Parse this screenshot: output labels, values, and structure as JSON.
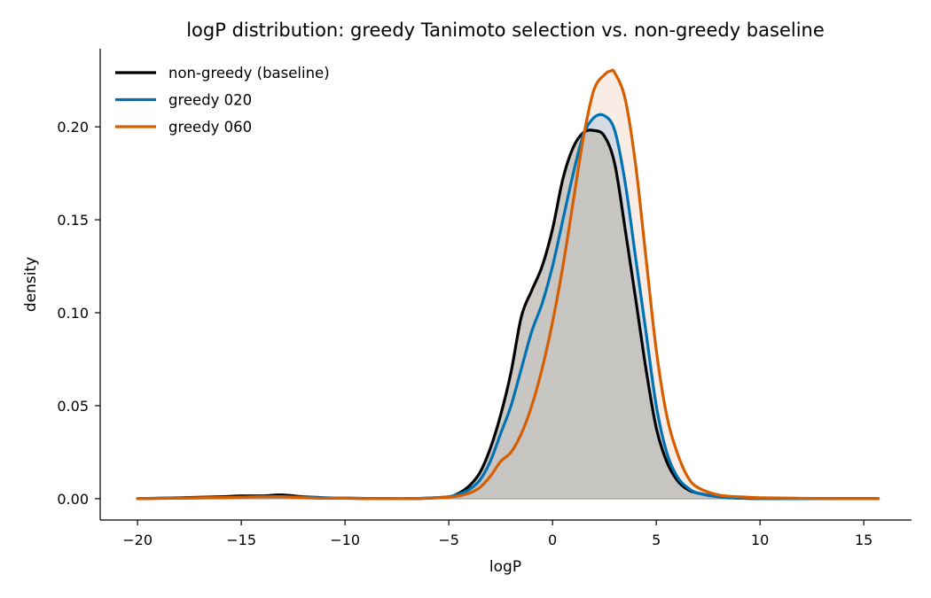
{
  "chart_data": {
    "type": "area",
    "title": "logP distribution: greedy Tanimoto selection vs. non-greedy baseline",
    "xlabel": "logP",
    "ylabel": "density",
    "xlim": [
      -21.8,
      17.3
    ],
    "ylim": [
      -0.0115,
      0.242
    ],
    "xticks": [
      -20,
      -15,
      -10,
      -5,
      0,
      5,
      10,
      15
    ],
    "xtick_labels": [
      "−20",
      "−15",
      "−10",
      "−5",
      "0",
      "5",
      "10",
      "15"
    ],
    "yticks": [
      0.0,
      0.05,
      0.1,
      0.15,
      0.2
    ],
    "ytick_labels": [
      "0.00",
      "0.05",
      "0.10",
      "0.15",
      "0.20"
    ],
    "grid": false,
    "legend_position": "top-left",
    "series": [
      {
        "name": "non-greedy (baseline)",
        "color": "#000000",
        "fill": "#c4c1bc",
        "x": [
          -20,
          -18,
          -16,
          -15,
          -14,
          -13,
          -12,
          -11,
          -10,
          -9,
          -8,
          -7,
          -6,
          -5,
          -4.5,
          -4,
          -3.5,
          -3,
          -2.5,
          -2,
          -1.5,
          -1,
          -0.5,
          0,
          0.5,
          1,
          1.5,
          2,
          2.5,
          3,
          3.5,
          4,
          4.5,
          5,
          5.5,
          6,
          6.5,
          7,
          8,
          9,
          10,
          12,
          14,
          15.7
        ],
        "y": [
          0.0,
          0.0005,
          0.001,
          0.0015,
          0.0015,
          0.002,
          0.001,
          0.0005,
          0.0003,
          0.0001,
          0.0,
          0.0,
          0.0003,
          0.001,
          0.003,
          0.007,
          0.014,
          0.027,
          0.045,
          0.068,
          0.098,
          0.112,
          0.125,
          0.145,
          0.172,
          0.189,
          0.197,
          0.198,
          0.195,
          0.18,
          0.145,
          0.108,
          0.07,
          0.038,
          0.02,
          0.01,
          0.005,
          0.003,
          0.001,
          0.0003,
          0.0001,
          0.0,
          0.0,
          0.0
        ]
      },
      {
        "name": "greedy 020",
        "color": "#0072b2",
        "fill": "#c9d5e3",
        "x": [
          -20,
          -18,
          -16,
          -15,
          -14,
          -13,
          -12,
          -11,
          -10,
          -9,
          -8,
          -7,
          -6,
          -5,
          -4.5,
          -4,
          -3.5,
          -3,
          -2.5,
          -2,
          -1.5,
          -1,
          -0.5,
          0,
          0.5,
          1,
          1.5,
          2,
          2.5,
          3,
          3.5,
          4,
          4.5,
          5,
          5.5,
          6,
          6.5,
          7,
          8,
          9,
          10,
          12,
          14,
          15.7
        ],
        "y": [
          0.0,
          0.0003,
          0.0005,
          0.0008,
          0.001,
          0.001,
          0.0008,
          0.0004,
          0.0002,
          0.0001,
          0.0,
          0.0,
          0.0003,
          0.001,
          0.0025,
          0.005,
          0.01,
          0.02,
          0.035,
          0.05,
          0.07,
          0.09,
          0.105,
          0.125,
          0.15,
          0.175,
          0.196,
          0.205,
          0.206,
          0.198,
          0.17,
          0.13,
          0.09,
          0.05,
          0.025,
          0.012,
          0.006,
          0.003,
          0.001,
          0.0003,
          0.0,
          0.0,
          0.0,
          0.0
        ]
      },
      {
        "name": "greedy 060",
        "color": "#d55e00",
        "fill": "#f6e6dc",
        "x": [
          -20,
          -18,
          -16,
          -15,
          -14,
          -13,
          -12,
          -11,
          -10,
          -9,
          -8,
          -7,
          -6,
          -5,
          -4.5,
          -4,
          -3.5,
          -3,
          -2.5,
          -2,
          -1.5,
          -1,
          -0.5,
          0,
          0.5,
          1,
          1.5,
          2,
          2.5,
          2.8,
          3,
          3.5,
          4,
          4.5,
          5,
          5.5,
          6,
          6.5,
          7,
          8,
          9,
          10,
          12,
          14,
          15.7
        ],
        "y": [
          0.0,
          0.0003,
          0.0006,
          0.0008,
          0.001,
          0.001,
          0.0005,
          0.0002,
          0.0003,
          0.0,
          0.0,
          0.0,
          0.0002,
          0.0008,
          0.0015,
          0.003,
          0.006,
          0.012,
          0.02,
          0.025,
          0.035,
          0.05,
          0.07,
          0.095,
          0.125,
          0.16,
          0.195,
          0.22,
          0.228,
          0.23,
          0.229,
          0.215,
          0.18,
          0.13,
          0.08,
          0.045,
          0.025,
          0.012,
          0.006,
          0.002,
          0.001,
          0.0005,
          0.0002,
          0.0,
          0.0
        ]
      }
    ]
  }
}
